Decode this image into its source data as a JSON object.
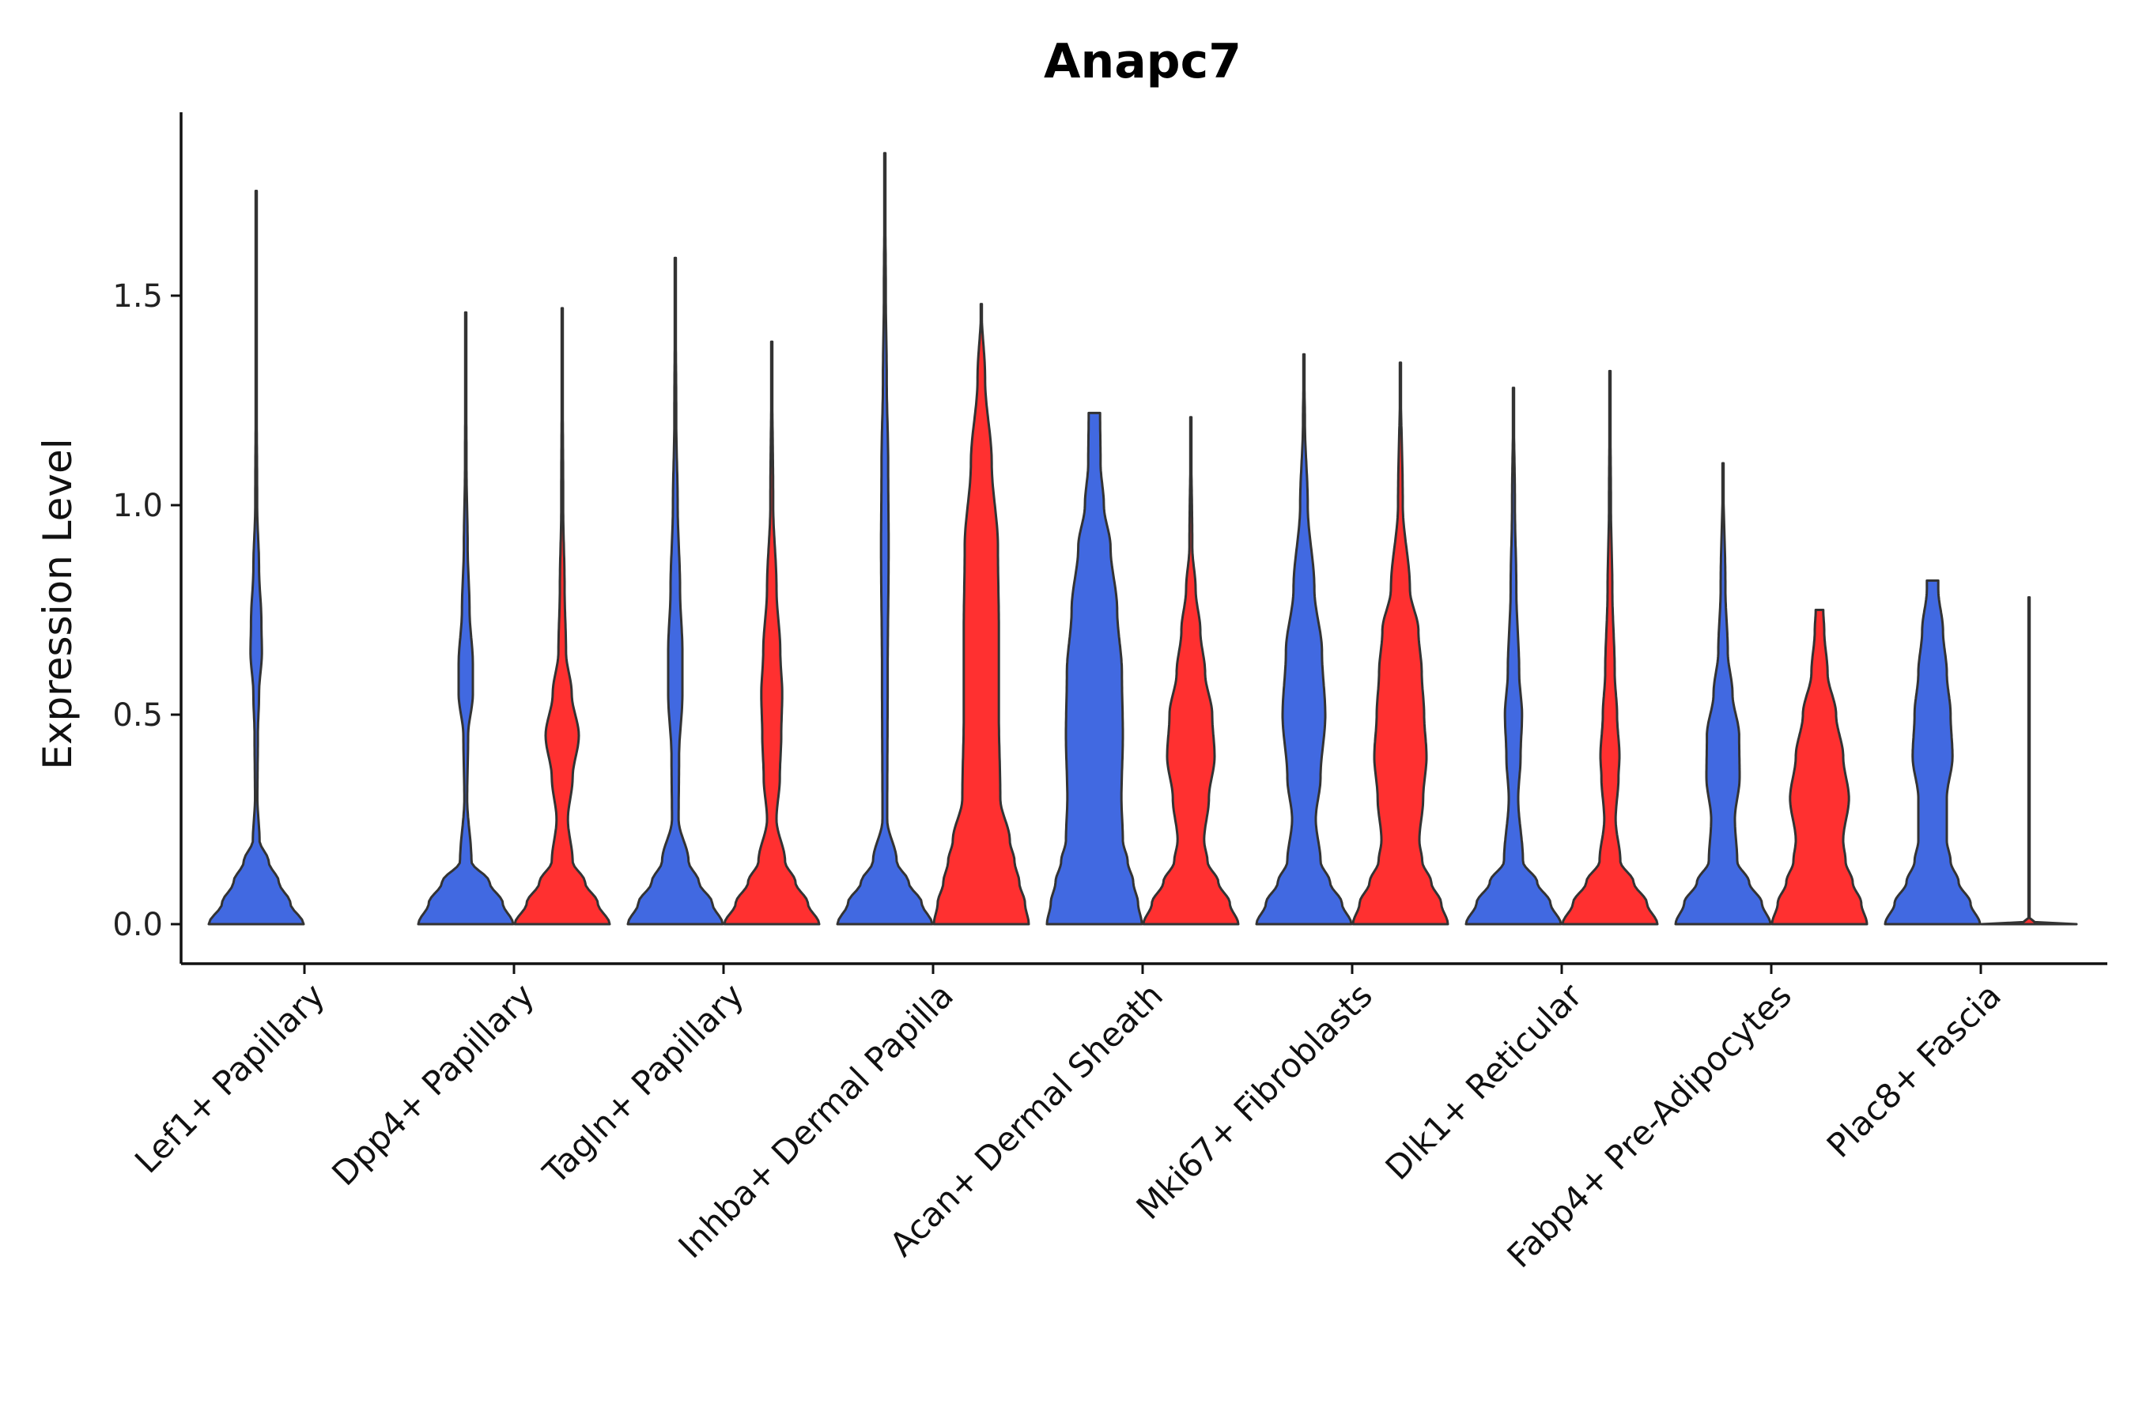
{
  "chart_data": {
    "type": "violin",
    "title": "Anapc7",
    "xlabel": "",
    "ylabel": "Expression Level",
    "ylim": [
      -0.09,
      1.94
    ],
    "yticks": [
      {
        "value": 0.0,
        "label": "0.0"
      },
      {
        "value": 0.5,
        "label": "0.5"
      },
      {
        "value": 1.0,
        "label": "1.0"
      },
      {
        "value": 1.5,
        "label": "1.5"
      }
    ],
    "grid": false,
    "legend": "none",
    "colors": {
      "group_a": "#4169E1",
      "group_b": "#FF3030"
    },
    "categories": [
      "Lef1+ Papillary",
      "Dpp4+ Papillary",
      "Tagln+ Papillary",
      "Inhba+ Dermal Papilla",
      "Acan+ Dermal Sheath",
      "Mki67+ Fibroblasts",
      "Dlk1+ Reticular",
      "Fabp4+ Pre-Adipocytes",
      "Plac8+ Fascia"
    ],
    "violins": [
      {
        "category": "Lef1+ Papillary",
        "group": "a",
        "max": 1.75,
        "profile": [
          [
            0,
            1.0
          ],
          [
            0.05,
            0.72
          ],
          [
            0.1,
            0.48
          ],
          [
            0.15,
            0.26
          ],
          [
            0.2,
            0.07
          ],
          [
            0.3,
            0.025
          ],
          [
            0.45,
            0.035
          ],
          [
            0.55,
            0.06
          ],
          [
            0.65,
            0.12
          ],
          [
            0.72,
            0.11
          ],
          [
            0.85,
            0.06
          ],
          [
            1.0,
            0.02
          ],
          [
            1.3,
            0.008
          ],
          [
            1.75,
            0.0
          ]
        ]
      },
      {
        "category": "Dpp4+ Papillary",
        "group": "a",
        "max": 1.46,
        "profile": [
          [
            0,
            1.0
          ],
          [
            0.05,
            0.78
          ],
          [
            0.1,
            0.5
          ],
          [
            0.15,
            0.12
          ],
          [
            0.3,
            0.03
          ],
          [
            0.45,
            0.05
          ],
          [
            0.55,
            0.15
          ],
          [
            0.62,
            0.15
          ],
          [
            0.75,
            0.08
          ],
          [
            0.9,
            0.04
          ],
          [
            1.1,
            0.015
          ],
          [
            1.46,
            0.0
          ]
        ]
      },
      {
        "category": "Dpp4+ Papillary",
        "group": "b",
        "max": 1.47,
        "profile": [
          [
            0,
            1.0
          ],
          [
            0.05,
            0.75
          ],
          [
            0.1,
            0.48
          ],
          [
            0.15,
            0.22
          ],
          [
            0.25,
            0.12
          ],
          [
            0.35,
            0.22
          ],
          [
            0.45,
            0.35
          ],
          [
            0.55,
            0.2
          ],
          [
            0.65,
            0.08
          ],
          [
            0.8,
            0.05
          ],
          [
            1.0,
            0.02
          ],
          [
            1.47,
            0.0
          ]
        ]
      },
      {
        "category": "Tagln+ Papillary",
        "group": "a",
        "max": 1.59,
        "profile": [
          [
            0,
            1.0
          ],
          [
            0.05,
            0.78
          ],
          [
            0.1,
            0.5
          ],
          [
            0.15,
            0.28
          ],
          [
            0.25,
            0.07
          ],
          [
            0.4,
            0.08
          ],
          [
            0.55,
            0.15
          ],
          [
            0.65,
            0.15
          ],
          [
            0.8,
            0.1
          ],
          [
            1.0,
            0.05
          ],
          [
            1.2,
            0.02
          ],
          [
            1.59,
            0.0
          ]
        ]
      },
      {
        "category": "Tagln+ Papillary",
        "group": "b",
        "max": 1.39,
        "profile": [
          [
            0,
            1.0
          ],
          [
            0.05,
            0.76
          ],
          [
            0.1,
            0.5
          ],
          [
            0.15,
            0.28
          ],
          [
            0.25,
            0.1
          ],
          [
            0.35,
            0.17
          ],
          [
            0.45,
            0.2
          ],
          [
            0.55,
            0.22
          ],
          [
            0.65,
            0.18
          ],
          [
            0.8,
            0.1
          ],
          [
            1.0,
            0.03
          ],
          [
            1.39,
            0.0
          ]
        ]
      },
      {
        "category": "Inhba+ Dermal Papilla",
        "group": "a",
        "max": 1.84,
        "profile": [
          [
            0,
            1.0
          ],
          [
            0.05,
            0.78
          ],
          [
            0.1,
            0.5
          ],
          [
            0.15,
            0.25
          ],
          [
            0.25,
            0.05
          ],
          [
            0.6,
            0.06
          ],
          [
            0.9,
            0.08
          ],
          [
            1.1,
            0.07
          ],
          [
            1.3,
            0.04
          ],
          [
            1.5,
            0.02
          ],
          [
            1.84,
            0.0
          ]
        ]
      },
      {
        "category": "Inhba+ Dermal Papilla",
        "group": "b",
        "max": 1.48,
        "profile": [
          [
            0,
            1.0
          ],
          [
            0.05,
            0.92
          ],
          [
            0.1,
            0.8
          ],
          [
            0.15,
            0.7
          ],
          [
            0.2,
            0.6
          ],
          [
            0.3,
            0.4
          ],
          [
            0.5,
            0.37
          ],
          [
            0.7,
            0.37
          ],
          [
            0.9,
            0.35
          ],
          [
            1.1,
            0.22
          ],
          [
            1.3,
            0.08
          ],
          [
            1.48,
            0.0
          ]
        ]
      },
      {
        "category": "Acan+ Dermal Sheath",
        "group": "a",
        "max": 1.22,
        "profile": [
          [
            0,
            1.0
          ],
          [
            0.05,
            0.92
          ],
          [
            0.1,
            0.82
          ],
          [
            0.15,
            0.7
          ],
          [
            0.2,
            0.6
          ],
          [
            0.3,
            0.57
          ],
          [
            0.45,
            0.6
          ],
          [
            0.6,
            0.58
          ],
          [
            0.75,
            0.48
          ],
          [
            0.9,
            0.34
          ],
          [
            1.0,
            0.2
          ],
          [
            1.1,
            0.13
          ],
          [
            1.22,
            0.12
          ]
        ]
      },
      {
        "category": "Acan+ Dermal Sheath",
        "group": "b",
        "max": 1.21,
        "profile": [
          [
            0,
            1.0
          ],
          [
            0.05,
            0.82
          ],
          [
            0.1,
            0.58
          ],
          [
            0.15,
            0.35
          ],
          [
            0.2,
            0.28
          ],
          [
            0.3,
            0.38
          ],
          [
            0.4,
            0.5
          ],
          [
            0.5,
            0.45
          ],
          [
            0.6,
            0.3
          ],
          [
            0.7,
            0.2
          ],
          [
            0.8,
            0.1
          ],
          [
            0.9,
            0.03
          ],
          [
            1.21,
            0.0
          ]
        ]
      },
      {
        "category": "Mki67+ Fibroblasts",
        "group": "a",
        "max": 1.36,
        "profile": [
          [
            0,
            1.0
          ],
          [
            0.05,
            0.8
          ],
          [
            0.1,
            0.55
          ],
          [
            0.15,
            0.35
          ],
          [
            0.25,
            0.25
          ],
          [
            0.35,
            0.35
          ],
          [
            0.5,
            0.45
          ],
          [
            0.65,
            0.38
          ],
          [
            0.8,
            0.22
          ],
          [
            1.0,
            0.08
          ],
          [
            1.2,
            0.02
          ],
          [
            1.36,
            0.0
          ]
        ]
      },
      {
        "category": "Mki67+ Fibroblasts",
        "group": "b",
        "max": 1.34,
        "profile": [
          [
            0,
            1.0
          ],
          [
            0.05,
            0.86
          ],
          [
            0.1,
            0.65
          ],
          [
            0.15,
            0.46
          ],
          [
            0.2,
            0.4
          ],
          [
            0.3,
            0.48
          ],
          [
            0.4,
            0.55
          ],
          [
            0.5,
            0.5
          ],
          [
            0.6,
            0.45
          ],
          [
            0.7,
            0.38
          ],
          [
            0.8,
            0.2
          ],
          [
            1.0,
            0.05
          ],
          [
            1.34,
            0.0
          ]
        ]
      },
      {
        "category": "Dlk1+ Reticular",
        "group": "a",
        "max": 1.28,
        "profile": [
          [
            0,
            1.0
          ],
          [
            0.05,
            0.78
          ],
          [
            0.1,
            0.5
          ],
          [
            0.15,
            0.2
          ],
          [
            0.3,
            0.1
          ],
          [
            0.4,
            0.15
          ],
          [
            0.5,
            0.18
          ],
          [
            0.6,
            0.12
          ],
          [
            0.8,
            0.06
          ],
          [
            1.0,
            0.03
          ],
          [
            1.28,
            0.0
          ]
        ]
      },
      {
        "category": "Dlk1+ Reticular",
        "group": "b",
        "max": 1.32,
        "profile": [
          [
            0,
            1.0
          ],
          [
            0.05,
            0.78
          ],
          [
            0.1,
            0.5
          ],
          [
            0.15,
            0.22
          ],
          [
            0.25,
            0.12
          ],
          [
            0.35,
            0.18
          ],
          [
            0.4,
            0.2
          ],
          [
            0.5,
            0.15
          ],
          [
            0.6,
            0.1
          ],
          [
            0.8,
            0.05
          ],
          [
            1.0,
            0.02
          ],
          [
            1.32,
            0.0
          ]
        ]
      },
      {
        "category": "Fabp4+ Pre-Adipocytes",
        "group": "a",
        "max": 1.1,
        "profile": [
          [
            0,
            1.0
          ],
          [
            0.05,
            0.82
          ],
          [
            0.1,
            0.55
          ],
          [
            0.15,
            0.3
          ],
          [
            0.25,
            0.25
          ],
          [
            0.35,
            0.35
          ],
          [
            0.45,
            0.34
          ],
          [
            0.55,
            0.2
          ],
          [
            0.65,
            0.1
          ],
          [
            0.8,
            0.05
          ],
          [
            1.1,
            0.0
          ]
        ]
      },
      {
        "category": "Fabp4+ Pre-Adipocytes",
        "group": "b",
        "max": 0.75,
        "profile": [
          [
            0,
            1.0
          ],
          [
            0.05,
            0.88
          ],
          [
            0.1,
            0.7
          ],
          [
            0.15,
            0.55
          ],
          [
            0.2,
            0.5
          ],
          [
            0.3,
            0.62
          ],
          [
            0.4,
            0.5
          ],
          [
            0.5,
            0.35
          ],
          [
            0.6,
            0.17
          ],
          [
            0.7,
            0.1
          ],
          [
            0.75,
            0.08
          ]
        ]
      },
      {
        "category": "Plac8+ Fascia",
        "group": "a",
        "max": 0.82,
        "profile": [
          [
            0,
            1.0
          ],
          [
            0.05,
            0.8
          ],
          [
            0.1,
            0.55
          ],
          [
            0.15,
            0.38
          ],
          [
            0.2,
            0.3
          ],
          [
            0.3,
            0.3
          ],
          [
            0.4,
            0.42
          ],
          [
            0.5,
            0.38
          ],
          [
            0.6,
            0.3
          ],
          [
            0.7,
            0.22
          ],
          [
            0.8,
            0.12
          ],
          [
            0.82,
            0.12
          ]
        ]
      },
      {
        "category": "Plac8+ Fascia",
        "group": "b",
        "max": 0.78,
        "profile": [
          [
            0,
            1.0
          ],
          [
            0.005,
            0.12
          ],
          [
            0.015,
            0.01
          ],
          [
            0.78,
            0.0
          ]
        ]
      }
    ]
  }
}
